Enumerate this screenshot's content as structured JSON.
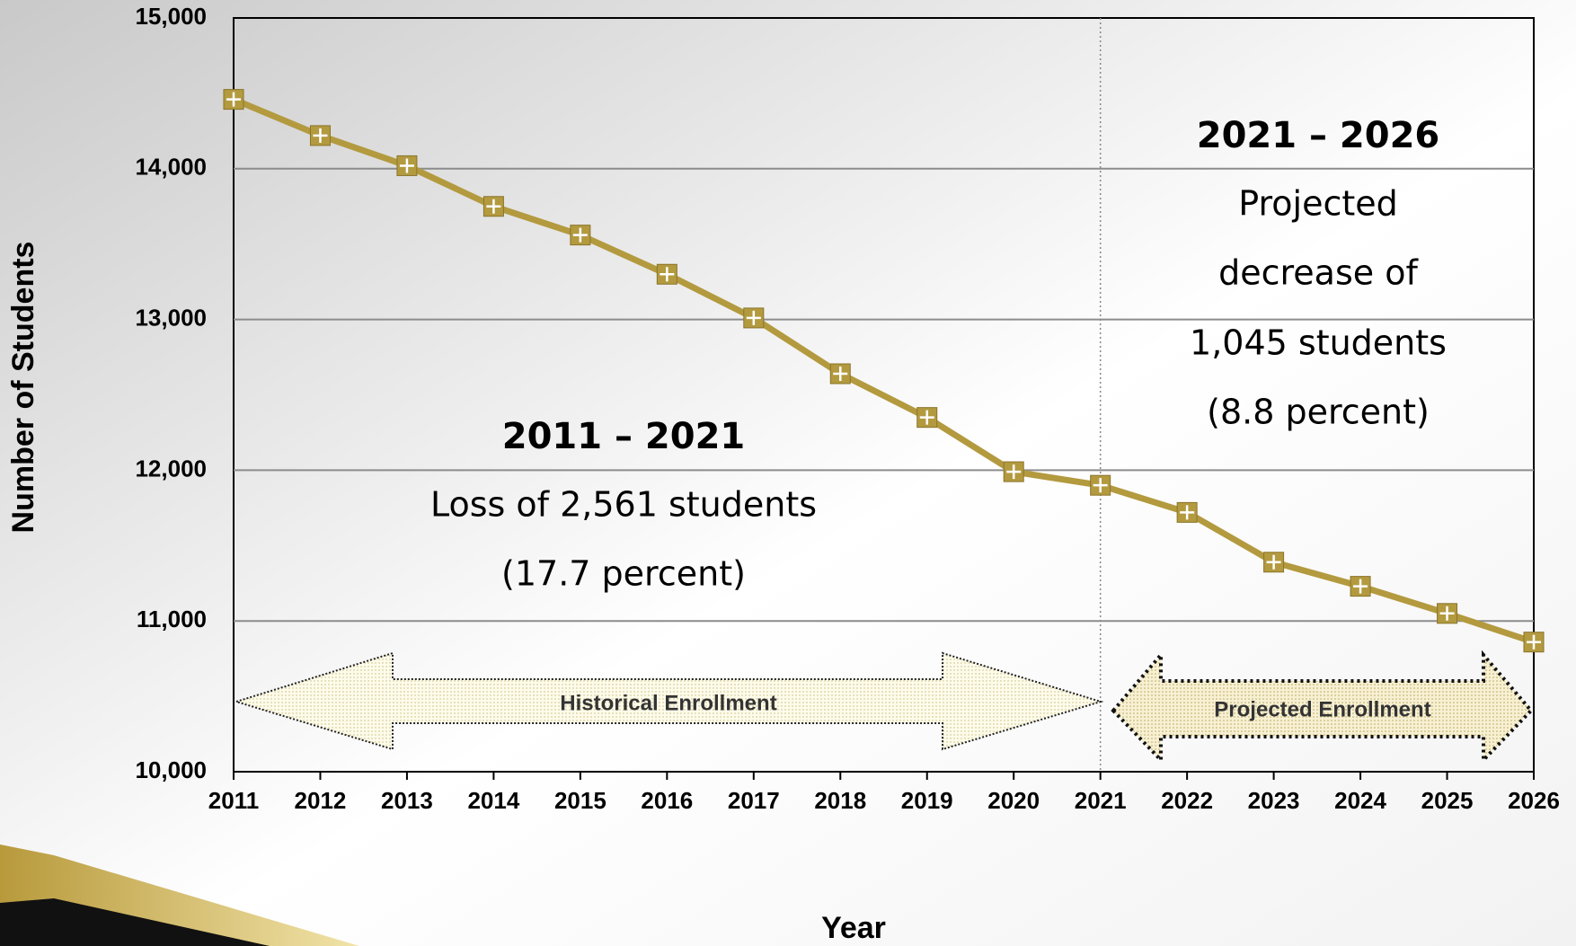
{
  "chart_data": {
    "type": "line",
    "y_label": "Number of Students",
    "x_label": "Year",
    "x": [
      2011,
      2012,
      2013,
      2014,
      2015,
      2016,
      2017,
      2018,
      2019,
      2020,
      2021,
      2022,
      2023,
      2024,
      2025,
      2026
    ],
    "series": [
      {
        "name": "Enrollment",
        "color": "#b39a3f",
        "values": [
          14460,
          14220,
          14020,
          13750,
          13560,
          13300,
          13010,
          12640,
          12350,
          11990,
          11900,
          11720,
          11390,
          11230,
          11050,
          10860
        ]
      }
    ],
    "xlim": [
      2011,
      2026
    ],
    "xticks": [
      2011,
      2012,
      2013,
      2014,
      2015,
      2016,
      2017,
      2018,
      2019,
      2020,
      2021,
      2022,
      2023,
      2024,
      2025,
      2026
    ],
    "ylim": [
      10000,
      15000
    ],
    "yticks": [
      {
        "value": 10000,
        "label": "10,000"
      },
      {
        "value": 11000,
        "label": "11,000"
      },
      {
        "value": 12000,
        "label": "12,000"
      },
      {
        "value": 13000,
        "label": "13,000"
      },
      {
        "value": 14000,
        "label": "14,000"
      },
      {
        "value": 15000,
        "label": "15,000"
      }
    ],
    "grid": true,
    "annotations": [
      "2011 – 2021",
      "Loss of 2,561 students",
      "(17.7 percent)",
      "2021 – 2026",
      "Projected",
      "decrease of",
      "1,045 students",
      "(8.8 percent)",
      "Historical Enrollment",
      "Projected Enrollment"
    ]
  }
}
